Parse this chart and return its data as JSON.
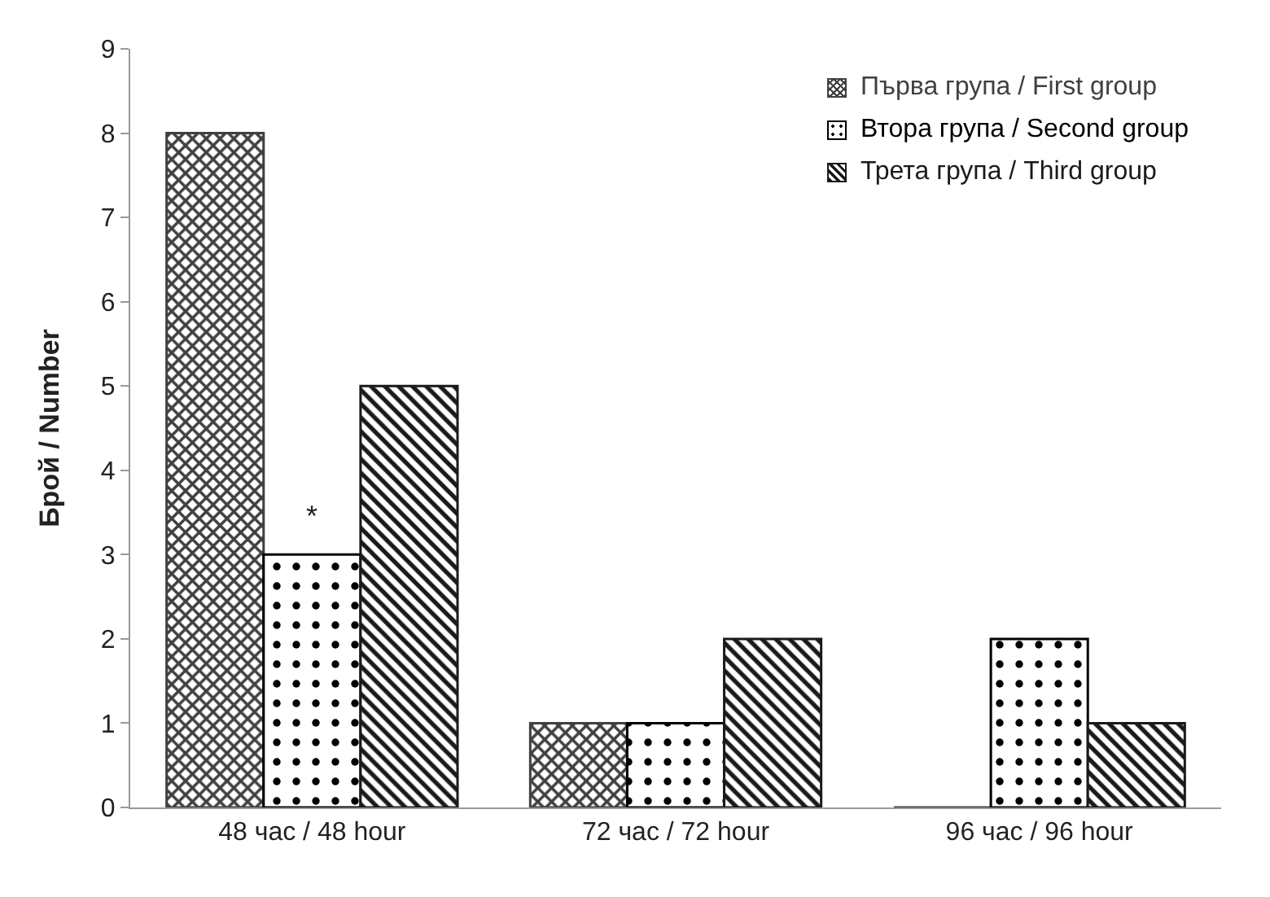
{
  "chart_data": {
    "type": "bar",
    "categories": [
      "48 час / 48 hour",
      "72 час / 72 hour",
      "96 час / 96 hour"
    ],
    "ylabel": "Брой / Number",
    "ylim": [
      0,
      9
    ],
    "yticks": [
      0,
      1,
      2,
      3,
      4,
      5,
      6,
      7,
      8,
      9
    ],
    "grid": false,
    "legend": "top right",
    "series": [
      {
        "name": "Първа група / First group",
        "color": "#404040",
        "values": [
          8,
          1,
          0
        ]
      },
      {
        "name": "Втора група / Second group",
        "color": "#000000",
        "values": [
          3,
          1,
          2
        ]
      },
      {
        "name": "Трета група / Third group",
        "color": "#1a1a1a",
        "values": [
          5,
          2,
          1
        ]
      }
    ],
    "annotations": [
      {
        "text": "*",
        "x": "48 час / 48 hour",
        "y": 3
      }
    ]
  }
}
